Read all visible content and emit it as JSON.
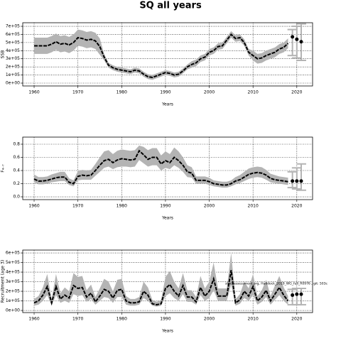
{
  "title": "SQ all years",
  "chart_data": [
    {
      "type": "line",
      "ylabel": "SSB",
      "xlabel": "Years",
      "grid": true,
      "color": "#000000",
      "band_color": "#b4b4b4",
      "xlim": [
        1957.4,
        2023.6
      ],
      "xticks": [
        1960,
        1970,
        1980,
        1990,
        2000,
        2010,
        2020
      ],
      "ylim": [
        -35000,
        744000
      ],
      "yticks": [
        {
          "value": 0,
          "label": "0e+00"
        },
        {
          "value": 100000,
          "label": "1e+05"
        },
        {
          "value": 200000,
          "label": "2e+05"
        },
        {
          "value": 300000,
          "label": "3e+05"
        },
        {
          "value": 400000,
          "label": "4e+05"
        },
        {
          "value": 500000,
          "label": "5e+05"
        },
        {
          "value": 600000,
          "label": "6e+05"
        },
        {
          "value": 700000,
          "label": "7e+05"
        }
      ],
      "x": [
        1960,
        1961,
        1962,
        1963,
        1964,
        1965,
        1966,
        1967,
        1968,
        1969,
        1970,
        1971,
        1972,
        1973,
        1974,
        1975,
        1976,
        1977,
        1978,
        1979,
        1980,
        1981,
        1982,
        1983,
        1984,
        1985,
        1986,
        1987,
        1988,
        1989,
        1990,
        1991,
        1992,
        1993,
        1994,
        1995,
        1996,
        1997,
        1998,
        1999,
        2000,
        2001,
        2002,
        2003,
        2004,
        2005,
        2006,
        2007,
        2008,
        2009,
        2010,
        2011,
        2012,
        2013,
        2014,
        2015,
        2016,
        2017,
        2018
      ],
      "values": [
        460000.0,
        460000.0,
        460000.0,
        460000.0,
        480000.0,
        510000.0,
        480000.0,
        490000.0,
        470000.0,
        500000.0,
        560000.0,
        550000.0,
        530000.0,
        540000.0,
        520000.0,
        450000.0,
        320000.0,
        220000.0,
        190000.0,
        170000.0,
        160000.0,
        150000.0,
        140000.0,
        160000.0,
        150000.0,
        110000.0,
        80000.0,
        70000.0,
        90000.0,
        110000.0,
        130000.0,
        120000.0,
        100000.0,
        110000.0,
        150000.0,
        200000.0,
        230000.0,
        250000.0,
        300000.0,
        320000.0,
        380000.0,
        400000.0,
        450000.0,
        460000.0,
        530000.0,
        600000.0,
        550000.0,
        560000.0,
        500000.0,
        380000.0,
        340000.0,
        300000.0,
        310000.0,
        340000.0,
        360000.0,
        380000.0,
        420000.0,
        440000.0,
        490000.0
      ],
      "lower": [
        360000.0,
        360000.0,
        360000.0,
        360000.0,
        380000.0,
        410000.0,
        380000.0,
        390000.0,
        370000.0,
        400000.0,
        460000.0,
        450000.0,
        430000.0,
        440000.0,
        420000.0,
        350000.0,
        280000.0,
        190000.0,
        160000.0,
        140000.0,
        130000.0,
        120000.0,
        110000.0,
        130000.0,
        120000.0,
        80000.0,
        50000.0,
        40000.0,
        60000.0,
        80000.0,
        100000.0,
        90000.0,
        70000.0,
        80000.0,
        120000.0,
        170000.0,
        190000.0,
        210000.0,
        260000.0,
        280000.0,
        340000.0,
        360000.0,
        410000.0,
        420000.0,
        490000.0,
        560000.0,
        510000.0,
        520000.0,
        460000.0,
        340000.0,
        280000.0,
        240000.0,
        250000.0,
        280000.0,
        300000.0,
        320000.0,
        360000.0,
        380000.0,
        430000.0
      ],
      "upper": [
        560000.0,
        560000.0,
        560000.0,
        560000.0,
        580000.0,
        610000.0,
        580000.0,
        590000.0,
        570000.0,
        600000.0,
        660000.0,
        650000.0,
        630000.0,
        640000.0,
        620000.0,
        550000.0,
        360000.0,
        250000.0,
        220000.0,
        200000.0,
        190000.0,
        180000.0,
        170000.0,
        190000.0,
        180000.0,
        140000.0,
        110000.0,
        100000.0,
        120000.0,
        140000.0,
        160000.0,
        150000.0,
        130000.0,
        140000.0,
        180000.0,
        230000.0,
        270000.0,
        290000.0,
        340000.0,
        360000.0,
        420000.0,
        440000.0,
        490000.0,
        500000.0,
        570000.0,
        640000.0,
        590000.0,
        600000.0,
        540000.0,
        420000.0,
        400000.0,
        360000.0,
        370000.0,
        400000.0,
        420000.0,
        440000.0,
        480000.0,
        500000.0,
        550000.0
      ],
      "projection": {
        "x": [
          2019,
          2020,
          2021
        ],
        "values": [
          570000.0,
          540000.0,
          510000.0
        ],
        "lower": [
          340000.0,
          310000.0,
          280000.0
        ],
        "upper": [
          660000.0,
          700000.0,
          730000.0
        ]
      }
    },
    {
      "type": "line",
      "ylabel": "F₄₋₇",
      "xlabel": "Years",
      "grid": true,
      "color": "#000000",
      "band_color": "#b4b4b4",
      "xlim": [
        1957.4,
        2023.6
      ],
      "xticks": [
        1960,
        1970,
        1980,
        1990,
        2000,
        2010,
        2020
      ],
      "ylim": [
        -0.043,
        0.908
      ],
      "yticks": [
        {
          "value": 0,
          "label": "0.0"
        },
        0.2,
        0.4,
        0.6,
        0.8
      ],
      "x": [
        1960,
        1961,
        1962,
        1963,
        1964,
        1965,
        1966,
        1967,
        1968,
        1969,
        1970,
        1971,
        1972,
        1973,
        1974,
        1975,
        1976,
        1977,
        1978,
        1979,
        1980,
        1981,
        1982,
        1983,
        1984,
        1985,
        1986,
        1987,
        1988,
        1989,
        1990,
        1991,
        1992,
        1993,
        1994,
        1995,
        1996,
        1997,
        1998,
        1999,
        2000,
        2001,
        2002,
        2003,
        2004,
        2005,
        2006,
        2007,
        2008,
        2009,
        2010,
        2011,
        2012,
        2013,
        2014,
        2015,
        2016,
        2017,
        2018
      ],
      "values": [
        0.27,
        0.24,
        0.24,
        0.25,
        0.27,
        0.29,
        0.3,
        0.3,
        0.22,
        0.2,
        0.31,
        0.33,
        0.32,
        0.33,
        0.4,
        0.48,
        0.55,
        0.57,
        0.52,
        0.56,
        0.58,
        0.57,
        0.56,
        0.57,
        0.7,
        0.64,
        0.57,
        0.6,
        0.6,
        0.5,
        0.55,
        0.52,
        0.6,
        0.55,
        0.48,
        0.38,
        0.36,
        0.25,
        0.25,
        0.25,
        0.23,
        0.2,
        0.19,
        0.18,
        0.18,
        0.2,
        0.24,
        0.26,
        0.3,
        0.34,
        0.36,
        0.37,
        0.36,
        0.33,
        0.28,
        0.26,
        0.25,
        0.24,
        0.23
      ],
      "lower": [
        0.22,
        0.19,
        0.19,
        0.2,
        0.22,
        0.23,
        0.24,
        0.24,
        0.18,
        0.16,
        0.25,
        0.26,
        0.26,
        0.26,
        0.32,
        0.38,
        0.44,
        0.46,
        0.42,
        0.45,
        0.46,
        0.46,
        0.45,
        0.46,
        0.56,
        0.51,
        0.46,
        0.48,
        0.48,
        0.4,
        0.44,
        0.42,
        0.48,
        0.44,
        0.38,
        0.3,
        0.29,
        0.2,
        0.2,
        0.2,
        0.18,
        0.16,
        0.15,
        0.14,
        0.14,
        0.16,
        0.19,
        0.21,
        0.24,
        0.27,
        0.29,
        0.3,
        0.29,
        0.26,
        0.22,
        0.21,
        0.2,
        0.19,
        0.18
      ],
      "upper": [
        0.34,
        0.3,
        0.3,
        0.31,
        0.34,
        0.36,
        0.38,
        0.38,
        0.28,
        0.25,
        0.39,
        0.41,
        0.4,
        0.41,
        0.5,
        0.6,
        0.69,
        0.71,
        0.65,
        0.7,
        0.72,
        0.71,
        0.7,
        0.71,
        0.78,
        0.76,
        0.71,
        0.74,
        0.74,
        0.63,
        0.69,
        0.65,
        0.75,
        0.69,
        0.6,
        0.48,
        0.45,
        0.31,
        0.31,
        0.31,
        0.29,
        0.25,
        0.24,
        0.23,
        0.23,
        0.25,
        0.3,
        0.33,
        0.38,
        0.43,
        0.45,
        0.46,
        0.45,
        0.41,
        0.35,
        0.33,
        0.31,
        0.3,
        0.29
      ],
      "projection": {
        "x": [
          2019,
          2020,
          2021
        ],
        "values": [
          0.24,
          0.24,
          0.24
        ],
        "lower": [
          0.14,
          0.12,
          0.1
        ],
        "upper": [
          0.38,
          0.44,
          0.5
        ]
      }
    },
    {
      "type": "line",
      "ylabel": "Recruitment (age 3)",
      "xlabel": "Years",
      "grid": true,
      "color": "#000000",
      "band_color": "#b4b4b4",
      "annotation": "stockassessment.org, Haddock_2019_WG_full_R0976 , git: 503c",
      "xlim": [
        1957.4,
        2023.6
      ],
      "xticks": [
        1960,
        1970,
        1980,
        1990,
        2000,
        2010,
        2020
      ],
      "ylim": [
        -22000,
        630000
      ],
      "yticks": [
        {
          "value": 0,
          "label": "0e+00"
        },
        {
          "value": 100000,
          "label": "1e+05"
        },
        {
          "value": 200000,
          "label": "2e+05"
        },
        {
          "value": 300000,
          "label": "3e+05"
        },
        {
          "value": 400000,
          "label": "4e+05"
        },
        {
          "value": 500000,
          "label": "5e+05"
        },
        {
          "value": 600000,
          "label": "6e+05"
        }
      ],
      "x": [
        1960,
        1961,
        1962,
        1963,
        1964,
        1965,
        1966,
        1967,
        1968,
        1969,
        1970,
        1971,
        1972,
        1973,
        1974,
        1975,
        1976,
        1977,
        1978,
        1979,
        1980,
        1981,
        1982,
        1983,
        1984,
        1985,
        1986,
        1987,
        1988,
        1989,
        1990,
        1991,
        1992,
        1993,
        1994,
        1995,
        1996,
        1997,
        1998,
        1999,
        2000,
        2001,
        2002,
        2003,
        2004,
        2005,
        2006,
        2007,
        2008,
        2009,
        2010,
        2011,
        2012,
        2013,
        2014,
        2015,
        2016,
        2017,
        2018
      ],
      "values": [
        80000.0,
        100000.0,
        160000.0,
        250000.0,
        80000.0,
        250000.0,
        120000.0,
        160000.0,
        130000.0,
        260000.0,
        230000.0,
        240000.0,
        140000.0,
        180000.0,
        90000.0,
        150000.0,
        220000.0,
        200000.0,
        130000.0,
        210000.0,
        220000.0,
        100000.0,
        80000.0,
        80000.0,
        90000.0,
        200000.0,
        160000.0,
        70000.0,
        60000.0,
        70000.0,
        230000.0,
        270000.0,
        200000.0,
        150000.0,
        260000.0,
        140000.0,
        140000.0,
        90000.0,
        240000.0,
        150000.0,
        200000.0,
        330000.0,
        150000.0,
        150000.0,
        150000.0,
        420000.0,
        80000.0,
        110000.0,
        200000.0,
        150000.0,
        250000.0,
        100000.0,
        140000.0,
        210000.0,
        100000.0,
        170000.0,
        240000.0,
        160000.0,
        100000.0
      ],
      "lower": [
        50000.0,
        60000.0,
        100000.0,
        160000.0,
        50000.0,
        160000.0,
        80000.0,
        100000.0,
        80000.0,
        170000.0,
        150000.0,
        160000.0,
        90000.0,
        120000.0,
        60000.0,
        100000.0,
        140000.0,
        130000.0,
        80000.0,
        140000.0,
        140000.0,
        60000.0,
        50000.0,
        50000.0,
        60000.0,
        130000.0,
        100000.0,
        50000.0,
        40000.0,
        50000.0,
        150000.0,
        180000.0,
        130000.0,
        100000.0,
        170000.0,
        90000.0,
        90000.0,
        60000.0,
        160000.0,
        100000.0,
        130000.0,
        210000.0,
        100000.0,
        100000.0,
        100000.0,
        270000.0,
        50000.0,
        70000.0,
        130000.0,
        100000.0,
        160000.0,
        60000.0,
        90000.0,
        140000.0,
        60000.0,
        110000.0,
        160000.0,
        100000.0,
        60000.0
      ],
      "upper": [
        120000.0,
        150000.0,
        240000.0,
        380000.0,
        120000.0,
        380000.0,
        180000.0,
        240000.0,
        200000.0,
        390000.0,
        350000.0,
        360000.0,
        210000.0,
        270000.0,
        140000.0,
        230000.0,
        330000.0,
        300000.0,
        200000.0,
        320000.0,
        330000.0,
        150000.0,
        120000.0,
        120000.0,
        140000.0,
        300000.0,
        240000.0,
        110000.0,
        90000.0,
        110000.0,
        350000.0,
        410000.0,
        300000.0,
        230000.0,
        390000.0,
        210000.0,
        210000.0,
        140000.0,
        360000.0,
        230000.0,
        300000.0,
        500000.0,
        230000.0,
        230000.0,
        230000.0,
        600000.0,
        120000.0,
        170000.0,
        300000.0,
        230000.0,
        380000.0,
        150000.0,
        210000.0,
        320000.0,
        150000.0,
        260000.0,
        360000.0,
        240000.0,
        150000.0
      ],
      "projection": {
        "x": [
          2019,
          2020,
          2021
        ],
        "values": [
          160000.0,
          170000.0,
          170000.0
        ],
        "lower": [
          60000.0,
          60000.0,
          60000.0
        ],
        "upper": [
          220000.0,
          230000.0,
          230000.0
        ]
      }
    }
  ]
}
